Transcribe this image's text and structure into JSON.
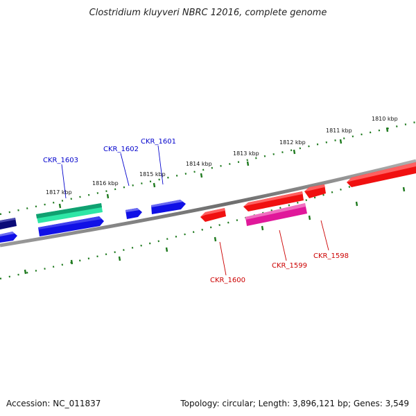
{
  "title": "Clostridium kluyveri NBRC 12016, complete genome",
  "accession_text": "Accession: NC_011837",
  "summary_text": "Topology: circular; Length: 3,896,121 bp; Genes: 3,549",
  "scale_labels": [
    "1817 kbp",
    "1816 kbp",
    "1815 kbp",
    "1814 kbp",
    "1813 kbp",
    "1812 kbp",
    "1811 kbp",
    "1810 kbp"
  ],
  "gene_labels": {
    "ckr_1603": "CKR_1603",
    "ckr_1602": "CKR_1602",
    "ckr_1601": "CKR_1601",
    "ckr_1600": "CKR_1600",
    "ckr_1599": "CKR_1599",
    "ckr_1598": "CKR_1598"
  },
  "colors": {
    "backbone": "#7a7a7a",
    "scale_ticks": "#1f7a1f",
    "forward_label": "#0000cc",
    "reverse_label": "#cc0000",
    "gene_navy": "#0b0b78",
    "gene_blue": "#1010e6",
    "gene_teal": "#2ee6a6",
    "gene_red": "#f01010",
    "gene_pink": "#e0189a"
  }
}
